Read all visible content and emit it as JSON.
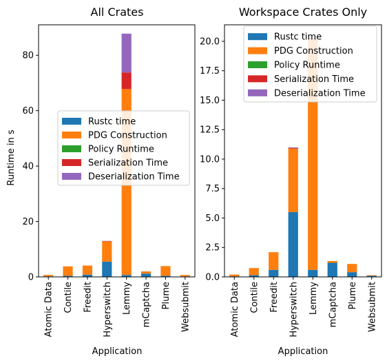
{
  "chart_data": [
    {
      "type": "bar",
      "stacked": true,
      "title": "All Crates",
      "xlabel": "Application",
      "ylabel": "Runtime in s",
      "ylim": [
        0,
        91
      ],
      "yticks": [
        0,
        20,
        40,
        60,
        80
      ],
      "ytick_labels": [
        "0",
        "20",
        "40",
        "60",
        "80"
      ],
      "legend_position": "center",
      "categories": [
        "Atomic Data",
        "Contile",
        "Freedit",
        "Hyperswitch",
        "Lemmy",
        "mCaptcha",
        "Plume",
        "Websubmit"
      ],
      "series": [
        {
          "name": "Rustc time",
          "color": "#1f77b4",
          "values": [
            0.2,
            0.4,
            0.8,
            5.5,
            0.7,
            1.2,
            0.4,
            0.2
          ]
        },
        {
          "name": "PDG Construction",
          "color": "#ff7f0e",
          "values": [
            0.5,
            3.4,
            3.3,
            7.3,
            67.1,
            0.8,
            3.5,
            0.5
          ]
        },
        {
          "name": "Policy Runtime",
          "color": "#2ca02c",
          "values": [
            0,
            0,
            0,
            0,
            0,
            0,
            0,
            0
          ]
        },
        {
          "name": "Serialization Time",
          "color": "#d62728",
          "values": [
            0,
            0,
            0,
            0.1,
            6,
            0,
            0,
            0
          ]
        },
        {
          "name": "Deserialization Time",
          "color": "#9467bd",
          "values": [
            0,
            0,
            0,
            0.1,
            14,
            0,
            0,
            0
          ]
        }
      ]
    },
    {
      "type": "bar",
      "stacked": true,
      "title": "Workspace Crates Only",
      "xlabel": "Application",
      "ylabel": "",
      "ylim": [
        0,
        21.4
      ],
      "yticks": [
        0,
        2.5,
        5,
        7.5,
        10,
        12.5,
        15,
        17.5,
        20
      ],
      "ytick_labels": [
        "0.0",
        "2.5",
        "5.0",
        "7.5",
        "10.0",
        "12.5",
        "15.0",
        "17.5",
        "20.0"
      ],
      "legend_position": "top-right",
      "categories": [
        "Atomic Data",
        "Contile",
        "Freedit",
        "Hyperswitch",
        "Lemmy",
        "mCaptcha",
        "Plume",
        "Websubmit"
      ],
      "series": [
        {
          "name": "Rustc time",
          "color": "#1f77b4",
          "values": [
            0.05,
            0.15,
            0.6,
            5.5,
            0.6,
            1.2,
            0.4,
            0.1
          ]
        },
        {
          "name": "PDG Construction",
          "color": "#ff7f0e",
          "values": [
            0.15,
            0.6,
            1.5,
            5.4,
            19.6,
            0.15,
            0.7,
            0.05
          ]
        },
        {
          "name": "Policy Runtime",
          "color": "#2ca02c",
          "values": [
            0,
            0,
            0,
            0,
            0,
            0,
            0,
            0
          ]
        },
        {
          "name": "Serialization Time",
          "color": "#d62728",
          "values": [
            0,
            0,
            0,
            0.05,
            0.05,
            0,
            0,
            0
          ]
        },
        {
          "name": "Deserialization Time",
          "color": "#9467bd",
          "values": [
            0,
            0,
            0,
            0.05,
            0.05,
            0,
            0,
            0
          ]
        }
      ]
    }
  ]
}
